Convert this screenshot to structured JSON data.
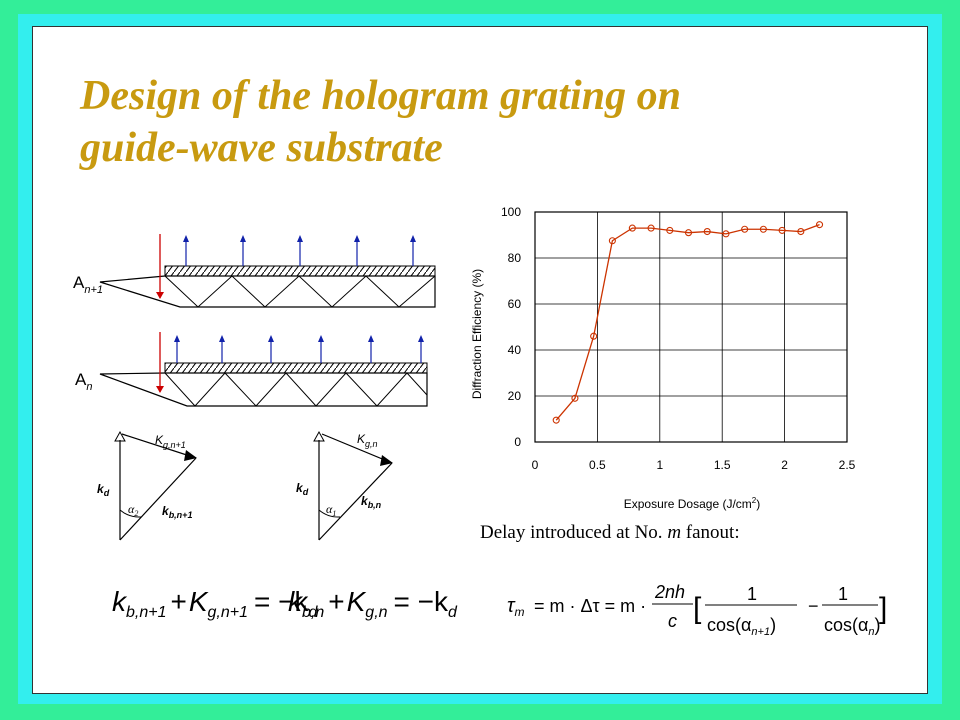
{
  "title": {
    "line1": "Design of the hologram grating on",
    "line2": "guide-wave substrate"
  },
  "caption": {
    "prefix": "Delay introduced at No. ",
    "var": "m",
    "suffix": " fanout:"
  },
  "diagram": {
    "label_upper": "A",
    "label_upper_sub": "n+1",
    "label_lower": "A",
    "label_lower_sub": "n",
    "tri1": {
      "Kg": "K",
      "Kg_sub": "g,n+1",
      "kd": "k",
      "kd_sub": "d",
      "kb": "k",
      "kb_sub": "b,n+1",
      "alpha": "α",
      "alpha_sub": "2"
    },
    "tri2": {
      "Kg": "K",
      "Kg_sub": "g,n",
      "kd": "k",
      "kd_sub": "d",
      "kb": "k",
      "kb_sub": "b,n",
      "alpha": "α",
      "alpha_sub": "1"
    }
  },
  "equations": {
    "eq1": {
      "k": "k",
      "kb_sub": "b,n+1",
      "plus": "+",
      "K": "K",
      "Kg_sub": "g,n+1",
      "rhs": "= −k",
      "rhs_sub": "d"
    },
    "eq2": {
      "k": "k",
      "kb_sub": "b,n",
      "plus": "+",
      "K": "K",
      "Kg_sub": "g,n",
      "rhs": "= −k",
      "rhs_sub": "d"
    },
    "eq3": {
      "tau": "τ",
      "tau_sub": "m",
      "mid": "= m · Δτ = m ·",
      "num": "2nh",
      "den": "c",
      "one": "1",
      "cos_left": "cos(α",
      "cos_left_sub": "n+1",
      "cos_right": "cos(α",
      "cos_right_sub": "n",
      "close": ")",
      "minus": "−",
      "lbr": "[",
      "rbr": "]"
    }
  },
  "chart_data": {
    "type": "line",
    "x": [
      0.17,
      0.32,
      0.47,
      0.62,
      0.78,
      0.93,
      1.08,
      1.23,
      1.38,
      1.53,
      1.68,
      1.83,
      1.98,
      2.13,
      2.28
    ],
    "series": [
      {
        "values": [
          9.5,
          19,
          46,
          87.5,
          93,
          93,
          92,
          91,
          91.5,
          90.5,
          92.5,
          92.5,
          92,
          91.5,
          94.5
        ]
      }
    ],
    "xlabel": "Exposure Dosage (J/cm",
    "xlabel_sup": "2",
    "xlabel_end": ")",
    "ylabel": "Diffraction Efficiency (%)",
    "xlim": [
      0,
      2.5
    ],
    "ylim": [
      0,
      100
    ],
    "xticks": [
      "0",
      "0.5",
      "1",
      "1.5",
      "2",
      "2.5"
    ],
    "yticks": [
      "0",
      "20",
      "40",
      "60",
      "80",
      "100"
    ],
    "grid": true,
    "line_color": "#cc3300",
    "grid_color": "#000000"
  }
}
